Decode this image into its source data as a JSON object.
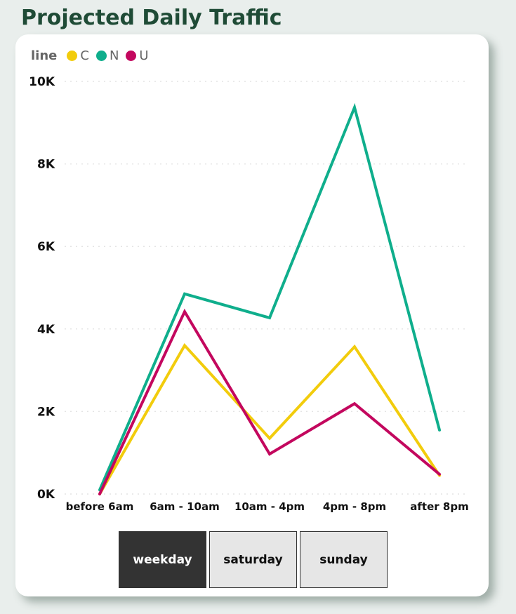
{
  "page": {
    "title": "Projected Daily Traffic"
  },
  "legend": {
    "title": "line"
  },
  "buttons": [
    {
      "label": "weekday",
      "active": true
    },
    {
      "label": "saturday",
      "active": false
    },
    {
      "label": "sunday",
      "active": false
    }
  ],
  "chart_data": {
    "type": "line",
    "categories": [
      "before 6am",
      "6am - 10am",
      "10am - 4pm",
      "4pm - 8pm",
      "after 8pm"
    ],
    "series": [
      {
        "name": "C",
        "color": "#F2CC0C",
        "values": [
          0,
          3600,
          1350,
          3570,
          450
        ]
      },
      {
        "name": "N",
        "color": "#0FAE8C",
        "values": [
          100,
          4850,
          4270,
          9370,
          1550
        ]
      },
      {
        "name": "U",
        "color": "#C3075E",
        "values": [
          0,
          4420,
          970,
          2190,
          480
        ]
      }
    ],
    "yticks": [
      "0K",
      "2K",
      "4K",
      "6K",
      "8K",
      "10K"
    ],
    "ylim": [
      0,
      10000
    ],
    "legend_position": "top-left",
    "grid": true
  }
}
